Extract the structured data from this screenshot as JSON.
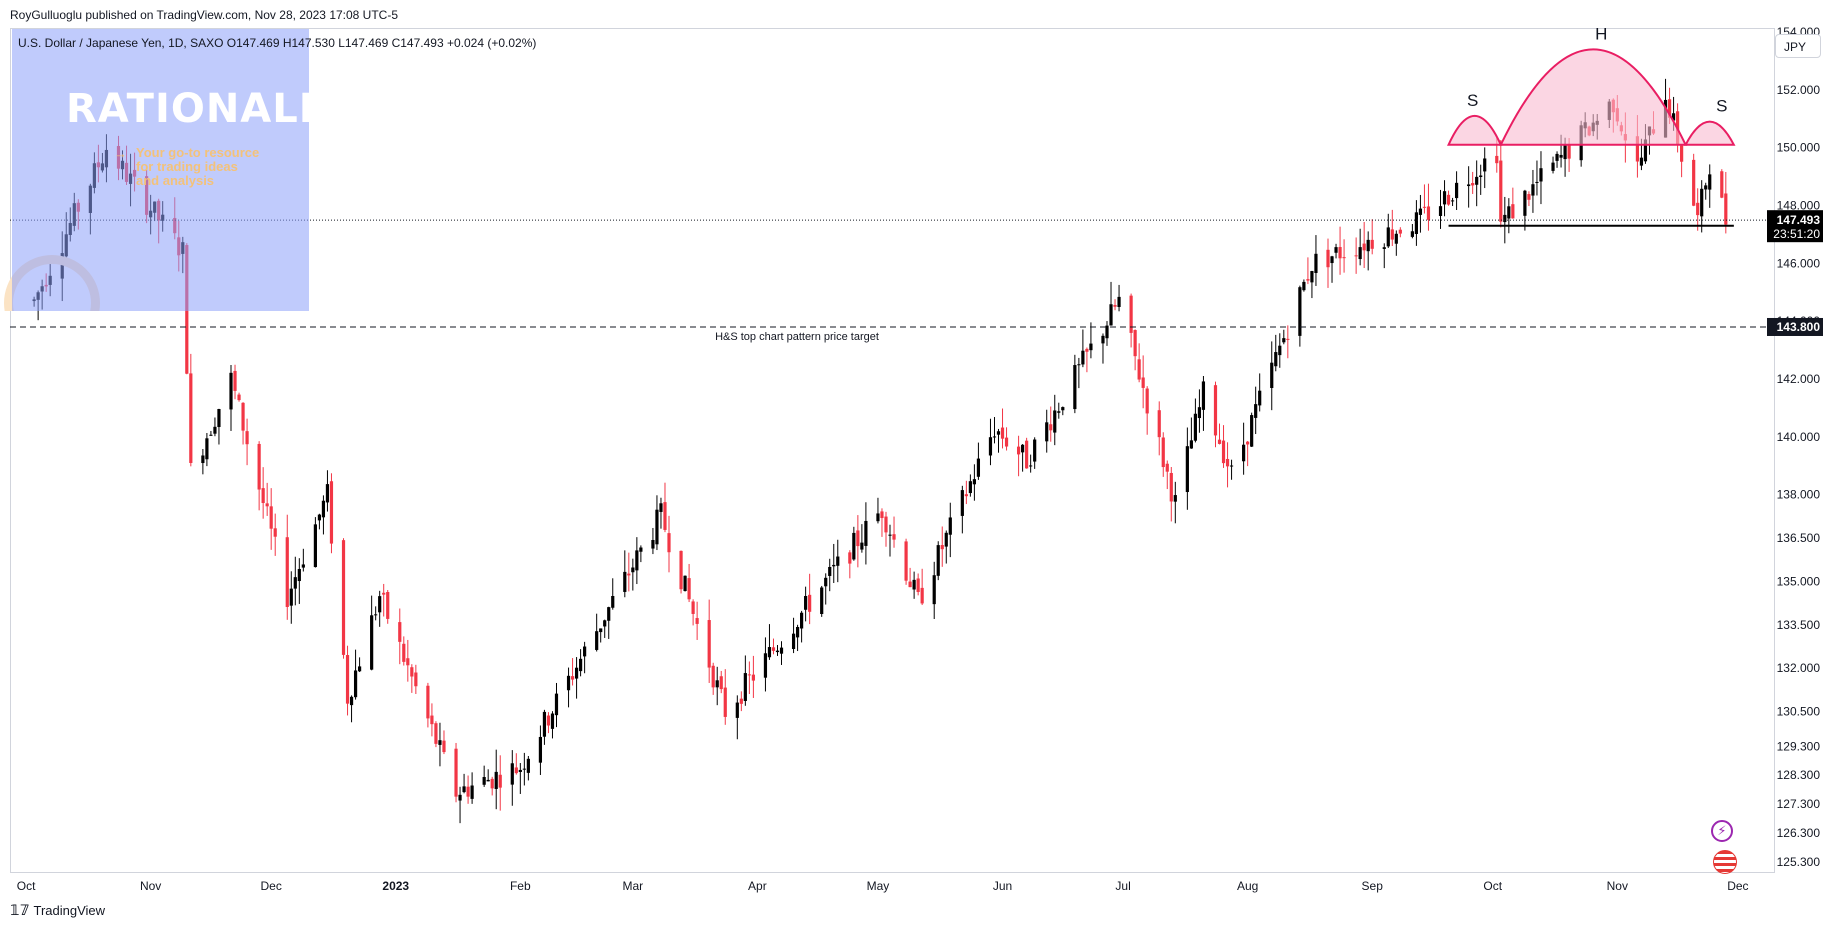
{
  "publish_line": "RoyGulluoglu published on TradingView.com, Nov 28, 2023 17:08 UTC-5",
  "symbol_info": "U.S. Dollar / Japanese Yen, 1D, SAXO  O147.469  H147.530  L147.469  C147.493  +0.024 (+0.02%)",
  "currency_button": "JPY",
  "price_badge": {
    "price": "147.493",
    "countdown": "23:51:20",
    "color": "#000000"
  },
  "target_badge": {
    "price": "143.800"
  },
  "footer_brand": "TradingView",
  "overlay": {
    "title": "RATIONALE",
    "subtitle_lines": [
      "Your go-to resource",
      "for trading ideas",
      "and analysis"
    ],
    "arrow": "→"
  },
  "icons": [
    "tradingview-logo-icon",
    "lightning-icon",
    "us-flag-icon"
  ],
  "colors": {
    "up": "#000000",
    "down": "#f23645",
    "pattern": "#e91e63",
    "pattern_fill": "#f8bbd0"
  },
  "chart_data": {
    "type": "candlestick",
    "title": "U.S. Dollar / Japanese Yen, 1D, SAXO",
    "ylim": [
      125.3,
      154.0
    ],
    "y_ticks": [
      "125.300",
      "126.300",
      "127.300",
      "128.300",
      "129.300",
      "130.500",
      "132.000",
      "133.500",
      "135.000",
      "136.500",
      "138.000",
      "140.000",
      "142.000",
      "144.000",
      "146.000",
      "148.000",
      "150.000",
      "152.000",
      "154.000"
    ],
    "x_ticks": [
      "Oct",
      "Nov",
      "Dec",
      "2023",
      "Feb",
      "Mar",
      "Apr",
      "May",
      "Jun",
      "Jul",
      "Aug",
      "Sep",
      "Oct",
      "Nov",
      "Dec"
    ],
    "price_path": [
      {
        "date": "2022-10-03",
        "price": 144.7
      },
      {
        "date": "2022-10-21",
        "price": 150.0
      },
      {
        "date": "2022-11-09",
        "price": 146.4
      },
      {
        "date": "2022-11-11",
        "price": 138.8
      },
      {
        "date": "2022-11-21",
        "price": 142.0
      },
      {
        "date": "2022-12-05",
        "price": 134.5
      },
      {
        "date": "2022-12-15",
        "price": 138.0
      },
      {
        "date": "2022-12-20",
        "price": 131.0
      },
      {
        "date": "2022-12-28",
        "price": 134.5
      },
      {
        "date": "2023-01-16",
        "price": 127.7
      },
      {
        "date": "2023-02-01",
        "price": 128.6
      },
      {
        "date": "2023-03-08",
        "price": 137.3
      },
      {
        "date": "2023-03-24",
        "price": 130.5
      },
      {
        "date": "2023-05-02",
        "price": 137.5
      },
      {
        "date": "2023-05-11",
        "price": 134.3
      },
      {
        "date": "2023-05-30",
        "price": 140.3
      },
      {
        "date": "2023-06-07",
        "price": 139.2
      },
      {
        "date": "2023-06-30",
        "price": 144.7
      },
      {
        "date": "2023-07-14",
        "price": 137.7
      },
      {
        "date": "2023-07-21",
        "price": 141.5
      },
      {
        "date": "2023-07-28",
        "price": 138.7
      },
      {
        "date": "2023-08-17",
        "price": 146.0
      },
      {
        "date": "2023-09-13",
        "price": 147.5
      },
      {
        "date": "2023-10-02",
        "price": 149.9
      },
      {
        "date": "2023-10-03",
        "price": 147.4
      },
      {
        "date": "2023-10-31",
        "price": 151.6
      },
      {
        "date": "2023-11-06",
        "price": 149.3
      },
      {
        "date": "2023-11-13",
        "price": 151.9
      },
      {
        "date": "2023-11-21",
        "price": 147.5
      },
      {
        "date": "2023-11-24",
        "price": 149.5
      },
      {
        "date": "2023-11-28",
        "price": 147.493
      }
    ],
    "last_price": 147.493,
    "neckline": {
      "price": 147.3,
      "from_date": "2023-09-20",
      "to_date": "2023-11-30"
    },
    "target_line": {
      "price": 143.8,
      "label": "H&S top chart pattern price target"
    },
    "pattern_labels": [
      {
        "text": "S",
        "date": "2023-09-26"
      },
      {
        "text": "H",
        "date": "2023-10-28"
      },
      {
        "text": "S",
        "date": "2023-11-27"
      }
    ],
    "pattern_arcs": [
      {
        "from_date": "2023-09-20",
        "to_date": "2023-10-03",
        "base_price": 150.1,
        "peak_price": 151.1
      },
      {
        "from_date": "2023-10-03",
        "to_date": "2023-11-18",
        "base_price": 150.1,
        "peak_price": 153.4
      },
      {
        "from_date": "2023-11-18",
        "to_date": "2023-11-30",
        "base_price": 150.1,
        "peak_price": 150.9
      }
    ],
    "current_price_line": {
      "price": 147.493,
      "style": "dotted"
    },
    "grid": false,
    "legend": "none"
  }
}
